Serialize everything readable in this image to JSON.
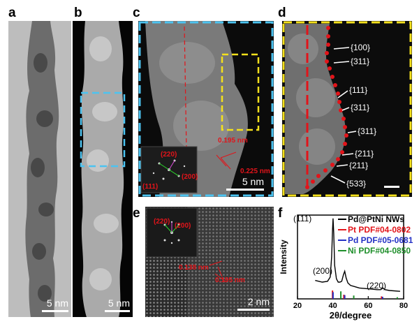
{
  "panels": {
    "a": {
      "letter": "a",
      "scale": "5 nm"
    },
    "b": {
      "letter": "b",
      "scale": "5 nm"
    },
    "c": {
      "letter": "c",
      "scale": "5 nm",
      "fft": [
        "(220)",
        "(111)",
        "(200)"
      ],
      "d1": "0.195 nm",
      "d2": "0.225 nm"
    },
    "d": {
      "letter": "d",
      "facets": [
        "{100}",
        "{311}",
        "{111}",
        "{311}",
        "{311}",
        "{211}",
        "{211}",
        "{533}"
      ]
    },
    "e": {
      "letter": "e",
      "scale": "2 nm",
      "fft": [
        "(220)",
        "(200)"
      ],
      "d1": "0.138 nm",
      "d2": "0.195 nm"
    },
    "f": {
      "letter": "f"
    }
  },
  "chart_data": {
    "type": "line",
    "xlabel": "2θ/degree",
    "ylabel": "Intensity",
    "xlim": [
      20,
      80
    ],
    "xticks": [
      20,
      40,
      60,
      80
    ],
    "peak_labels": [
      {
        "label": "(111)",
        "x": 40.1
      },
      {
        "label": "(200)",
        "x": 46.7
      },
      {
        "label": "(220)",
        "x": 68.3
      }
    ],
    "series": [
      {
        "name": "Pd@PtNi NWs",
        "color": "#000000",
        "x": [
          30,
          34,
          37,
          38.5,
          39.3,
          39.8,
          40.1,
          40.5,
          41,
          42,
          43,
          44,
          45,
          46,
          46.7,
          47.5,
          48.5,
          50,
          55,
          60,
          65,
          67,
          68.3,
          69.5,
          72,
          78
        ],
        "y": [
          0.22,
          0.2,
          0.21,
          0.26,
          0.5,
          0.82,
          0.96,
          0.78,
          0.4,
          0.24,
          0.2,
          0.2,
          0.21,
          0.29,
          0.33,
          0.25,
          0.19,
          0.16,
          0.13,
          0.12,
          0.11,
          0.11,
          0.13,
          0.11,
          0.1,
          0.09
        ]
      },
      {
        "name": "Pt PDF#04-0802",
        "color": "#e2141a",
        "x": [
          39.8,
          46.2,
          67.5
        ],
        "y": [
          0.1,
          0.05,
          0.03
        ]
      },
      {
        "name": "Pd PDF#05-0681",
        "color": "#2431c4",
        "x": [
          40.1,
          46.7,
          68.1
        ],
        "y": [
          0.08,
          0.045,
          0.025
        ]
      },
      {
        "name": "Ni PDF#04-0850",
        "color": "#1f8f2b",
        "x": [
          44.5,
          51.8,
          76.4
        ],
        "y": [
          0.09,
          0.04,
          0.02
        ]
      }
    ]
  }
}
